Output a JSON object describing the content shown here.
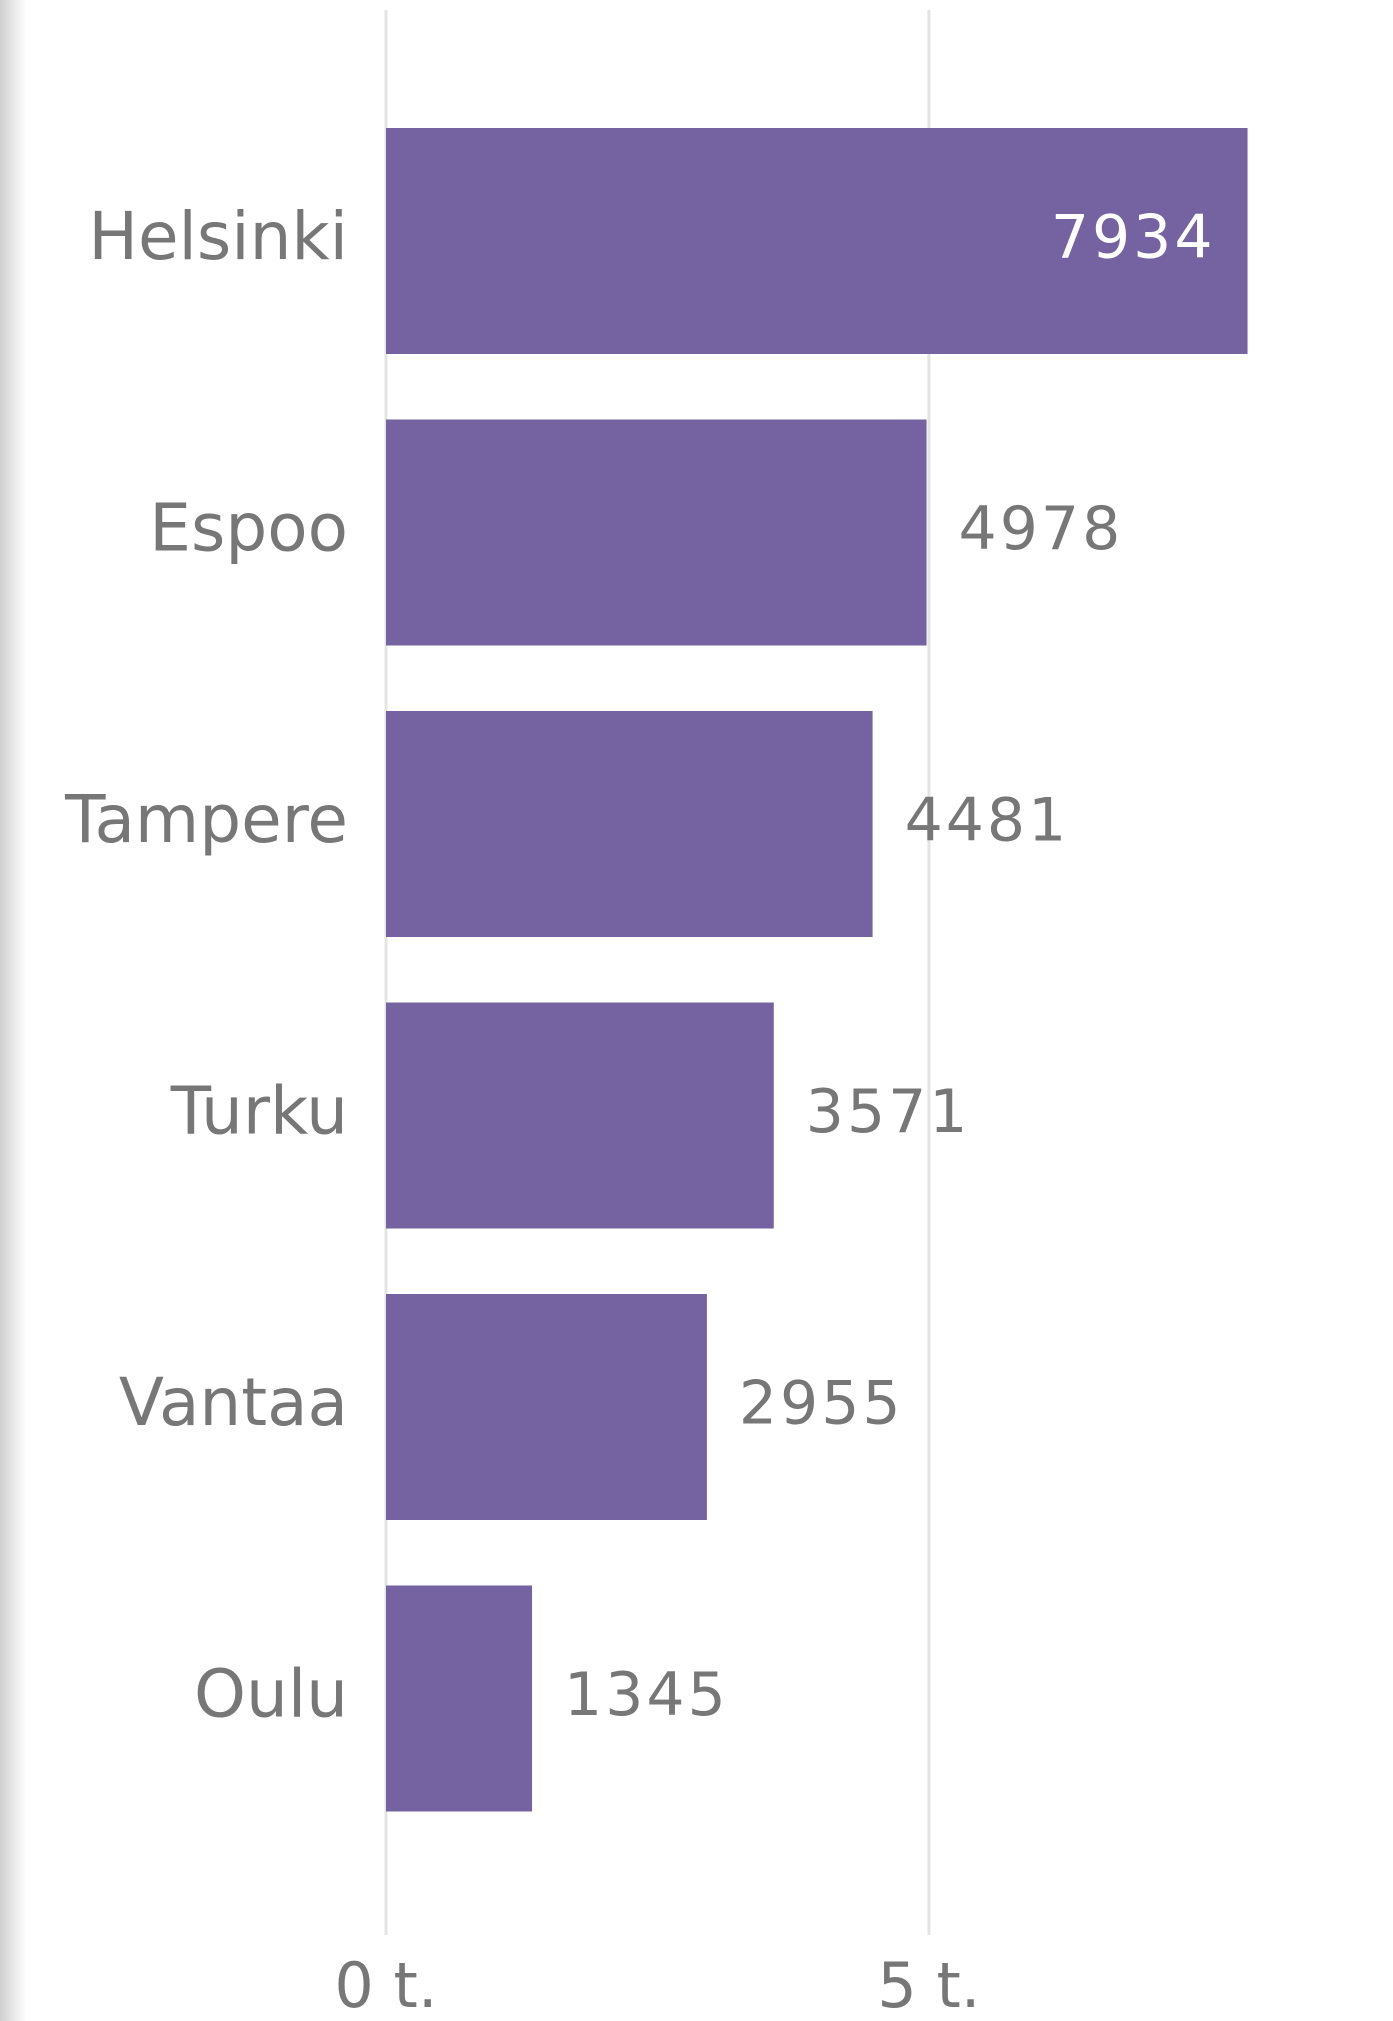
{
  "chart_data": {
    "type": "bar",
    "orientation": "horizontal",
    "categories": [
      "Helsinki",
      "Espoo",
      "Tampere",
      "Turku",
      "Vantaa",
      "Oulu"
    ],
    "values": [
      7934,
      4978,
      4481,
      3571,
      2955,
      1345
    ],
    "color": "#7562a0",
    "xlim": [
      0,
      8500
    ],
    "xticks": [
      {
        "value": 0,
        "label": "0 t."
      },
      {
        "value": 5000,
        "label": "5 t."
      }
    ],
    "grid": true
  }
}
